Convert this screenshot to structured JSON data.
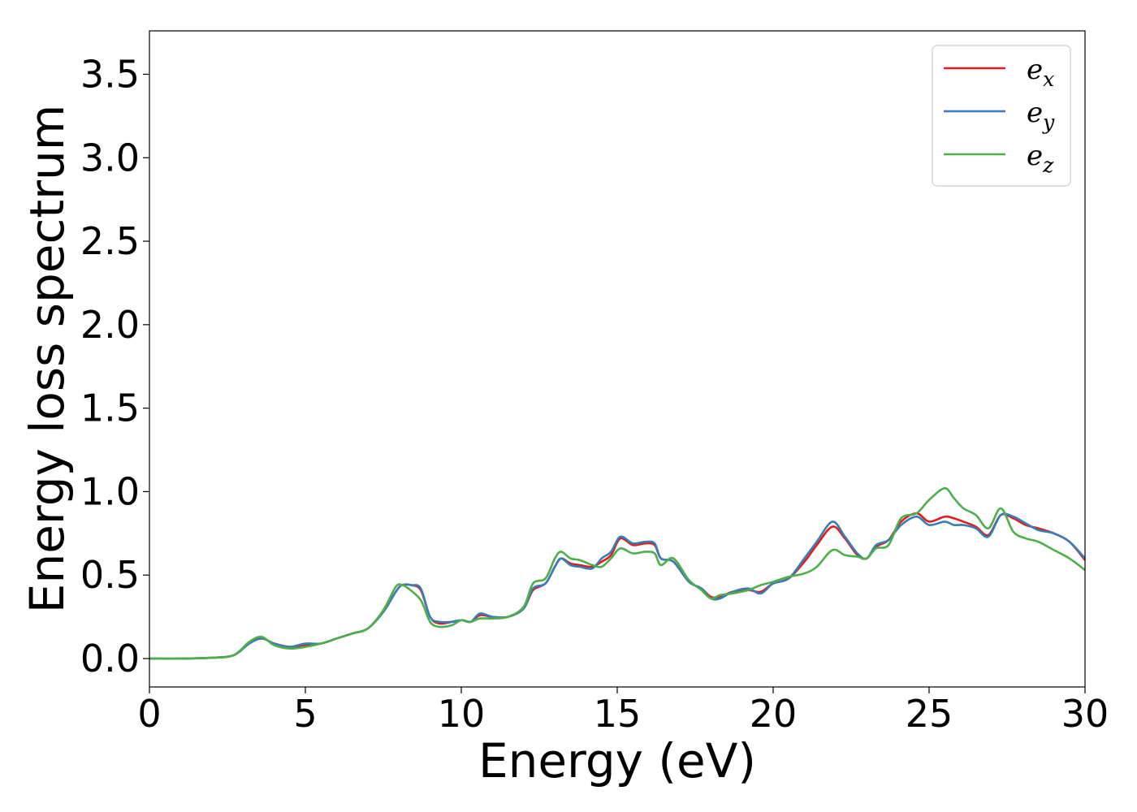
{
  "chart_data": {
    "type": "line",
    "title": "",
    "xlabel": "Energy (eV)",
    "ylabel": "Energy loss spectrum",
    "xlim": [
      0,
      30
    ],
    "ylim": [
      -0.17,
      3.76
    ],
    "xticks": [
      0,
      5,
      10,
      15,
      20,
      25,
      30
    ],
    "xtick_labels": [
      "0",
      "5",
      "10",
      "15",
      "20",
      "25",
      "30"
    ],
    "yticks": [
      0.0,
      0.5,
      1.0,
      1.5,
      2.0,
      2.5,
      3.0,
      3.5
    ],
    "ytick_labels": [
      "0.0",
      "0.5",
      "1.0",
      "1.5",
      "2.0",
      "2.5",
      "3.0",
      "3.5"
    ],
    "grid": false,
    "legend": {
      "position": "top-right"
    },
    "series": [
      {
        "name": "e_x",
        "legend_base": "e",
        "legend_sub": "x",
        "color": "#e41a1c",
        "points": [
          [
            0,
            0
          ],
          [
            1,
            0
          ],
          [
            2,
            0.005
          ],
          [
            2.7,
            0.02
          ],
          [
            3.2,
            0.09
          ],
          [
            3.6,
            0.12
          ],
          [
            4,
            0.09
          ],
          [
            4.5,
            0.07
          ],
          [
            5,
            0.08
          ],
          [
            5.5,
            0.09
          ],
          [
            6,
            0.12
          ],
          [
            6.5,
            0.15
          ],
          [
            7,
            0.18
          ],
          [
            7.5,
            0.28
          ],
          [
            7.9,
            0.4
          ],
          [
            8.1,
            0.44
          ],
          [
            8.4,
            0.44
          ],
          [
            8.7,
            0.41
          ],
          [
            9,
            0.25
          ],
          [
            9.3,
            0.21
          ],
          [
            9.7,
            0.22
          ],
          [
            10,
            0.23
          ],
          [
            10.3,
            0.22
          ],
          [
            10.6,
            0.26
          ],
          [
            11,
            0.25
          ],
          [
            11.5,
            0.25
          ],
          [
            12,
            0.3
          ],
          [
            12.3,
            0.41
          ],
          [
            12.7,
            0.45
          ],
          [
            13,
            0.55
          ],
          [
            13.2,
            0.6
          ],
          [
            13.5,
            0.57
          ],
          [
            13.8,
            0.56
          ],
          [
            14.2,
            0.55
          ],
          [
            14.5,
            0.58
          ],
          [
            14.8,
            0.62
          ],
          [
            15.1,
            0.72
          ],
          [
            15.5,
            0.68
          ],
          [
            15.9,
            0.69
          ],
          [
            16.2,
            0.68
          ],
          [
            16.4,
            0.6
          ],
          [
            16.8,
            0.58
          ],
          [
            17.3,
            0.46
          ],
          [
            17.7,
            0.42
          ],
          [
            18,
            0.37
          ],
          [
            18.3,
            0.37
          ],
          [
            18.7,
            0.4
          ],
          [
            19.2,
            0.41
          ],
          [
            19.6,
            0.4
          ],
          [
            20,
            0.45
          ],
          [
            20.5,
            0.48
          ],
          [
            21,
            0.58
          ],
          [
            21.4,
            0.68
          ],
          [
            21.9,
            0.79
          ],
          [
            22.3,
            0.72
          ],
          [
            22.7,
            0.62
          ],
          [
            23,
            0.6
          ],
          [
            23.3,
            0.67
          ],
          [
            23.7,
            0.71
          ],
          [
            24.1,
            0.82
          ],
          [
            24.6,
            0.87
          ],
          [
            25,
            0.82
          ],
          [
            25.5,
            0.85
          ],
          [
            25.8,
            0.84
          ],
          [
            26.1,
            0.82
          ],
          [
            26.5,
            0.79
          ],
          [
            26.9,
            0.74
          ],
          [
            27.3,
            0.86
          ],
          [
            27.7,
            0.84
          ],
          [
            28.1,
            0.8
          ],
          [
            28.5,
            0.78
          ],
          [
            29,
            0.75
          ],
          [
            29.5,
            0.7
          ],
          [
            30,
            0.59
          ]
        ]
      },
      {
        "name": "e_y",
        "legend_base": "e",
        "legend_sub": "y",
        "color": "#377eb8",
        "points": [
          [
            0,
            0
          ],
          [
            1,
            0
          ],
          [
            2,
            0.005
          ],
          [
            2.7,
            0.02
          ],
          [
            3.2,
            0.09
          ],
          [
            3.6,
            0.12
          ],
          [
            4,
            0.09
          ],
          [
            4.5,
            0.07
          ],
          [
            5,
            0.09
          ],
          [
            5.5,
            0.09
          ],
          [
            6,
            0.12
          ],
          [
            6.5,
            0.15
          ],
          [
            7,
            0.18
          ],
          [
            7.5,
            0.28
          ],
          [
            7.9,
            0.4
          ],
          [
            8.1,
            0.44
          ],
          [
            8.4,
            0.44
          ],
          [
            8.7,
            0.42
          ],
          [
            9,
            0.25
          ],
          [
            9.3,
            0.22
          ],
          [
            9.7,
            0.22
          ],
          [
            10,
            0.23
          ],
          [
            10.3,
            0.22
          ],
          [
            10.6,
            0.27
          ],
          [
            11,
            0.25
          ],
          [
            11.5,
            0.25
          ],
          [
            12,
            0.3
          ],
          [
            12.3,
            0.42
          ],
          [
            12.7,
            0.45
          ],
          [
            13,
            0.55
          ],
          [
            13.2,
            0.6
          ],
          [
            13.5,
            0.56
          ],
          [
            13.8,
            0.55
          ],
          [
            14.2,
            0.54
          ],
          [
            14.5,
            0.6
          ],
          [
            14.8,
            0.64
          ],
          [
            15.1,
            0.73
          ],
          [
            15.5,
            0.69
          ],
          [
            15.9,
            0.7
          ],
          [
            16.2,
            0.69
          ],
          [
            16.4,
            0.6
          ],
          [
            16.8,
            0.58
          ],
          [
            17.3,
            0.46
          ],
          [
            17.7,
            0.42
          ],
          [
            18,
            0.36
          ],
          [
            18.3,
            0.36
          ],
          [
            18.7,
            0.4
          ],
          [
            19.2,
            0.42
          ],
          [
            19.6,
            0.39
          ],
          [
            20,
            0.45
          ],
          [
            20.5,
            0.48
          ],
          [
            21,
            0.6
          ],
          [
            21.4,
            0.7
          ],
          [
            21.9,
            0.82
          ],
          [
            22.3,
            0.73
          ],
          [
            22.7,
            0.63
          ],
          [
            23,
            0.6
          ],
          [
            23.3,
            0.68
          ],
          [
            23.7,
            0.71
          ],
          [
            24.1,
            0.8
          ],
          [
            24.6,
            0.85
          ],
          [
            25,
            0.8
          ],
          [
            25.5,
            0.82
          ],
          [
            25.8,
            0.8
          ],
          [
            26.1,
            0.8
          ],
          [
            26.5,
            0.78
          ],
          [
            26.9,
            0.73
          ],
          [
            27.3,
            0.86
          ],
          [
            27.7,
            0.85
          ],
          [
            28.1,
            0.81
          ],
          [
            28.5,
            0.77
          ],
          [
            29,
            0.75
          ],
          [
            29.5,
            0.7
          ],
          [
            30,
            0.6
          ]
        ]
      },
      {
        "name": "e_z",
        "legend_base": "e",
        "legend_sub": "z",
        "color": "#4daf4a",
        "points": [
          [
            0,
            0
          ],
          [
            1,
            0
          ],
          [
            2,
            0.005
          ],
          [
            2.7,
            0.02
          ],
          [
            3.2,
            0.1
          ],
          [
            3.6,
            0.13
          ],
          [
            4,
            0.08
          ],
          [
            4.5,
            0.06
          ],
          [
            5,
            0.07
          ],
          [
            5.5,
            0.09
          ],
          [
            6,
            0.12
          ],
          [
            6.5,
            0.15
          ],
          [
            7,
            0.18
          ],
          [
            7.5,
            0.29
          ],
          [
            7.9,
            0.43
          ],
          [
            8.1,
            0.44
          ],
          [
            8.3,
            0.42
          ],
          [
            8.7,
            0.35
          ],
          [
            9,
            0.22
          ],
          [
            9.3,
            0.19
          ],
          [
            9.7,
            0.2
          ],
          [
            10,
            0.23
          ],
          [
            10.3,
            0.22
          ],
          [
            10.6,
            0.24
          ],
          [
            11,
            0.24
          ],
          [
            11.5,
            0.25
          ],
          [
            12,
            0.31
          ],
          [
            12.3,
            0.45
          ],
          [
            12.7,
            0.48
          ],
          [
            13,
            0.6
          ],
          [
            13.2,
            0.64
          ],
          [
            13.5,
            0.6
          ],
          [
            13.8,
            0.59
          ],
          [
            14.2,
            0.56
          ],
          [
            14.5,
            0.55
          ],
          [
            14.8,
            0.6
          ],
          [
            15.1,
            0.66
          ],
          [
            15.5,
            0.63
          ],
          [
            15.9,
            0.64
          ],
          [
            16.2,
            0.63
          ],
          [
            16.4,
            0.56
          ],
          [
            16.8,
            0.6
          ],
          [
            17.3,
            0.47
          ],
          [
            17.7,
            0.41
          ],
          [
            18,
            0.36
          ],
          [
            18.3,
            0.38
          ],
          [
            18.7,
            0.39
          ],
          [
            19.2,
            0.41
          ],
          [
            19.6,
            0.44
          ],
          [
            20,
            0.46
          ],
          [
            20.5,
            0.49
          ],
          [
            21,
            0.51
          ],
          [
            21.4,
            0.55
          ],
          [
            21.9,
            0.65
          ],
          [
            22.3,
            0.62
          ],
          [
            22.7,
            0.61
          ],
          [
            23,
            0.6
          ],
          [
            23.3,
            0.66
          ],
          [
            23.7,
            0.68
          ],
          [
            24.1,
            0.84
          ],
          [
            24.6,
            0.87
          ],
          [
            25,
            0.95
          ],
          [
            25.5,
            1.02
          ],
          [
            25.8,
            0.96
          ],
          [
            26.1,
            0.9
          ],
          [
            26.5,
            0.86
          ],
          [
            26.9,
            0.78
          ],
          [
            27.3,
            0.9
          ],
          [
            27.7,
            0.76
          ],
          [
            28.1,
            0.72
          ],
          [
            28.5,
            0.7
          ],
          [
            29,
            0.65
          ],
          [
            29.5,
            0.6
          ],
          [
            30,
            0.53
          ]
        ]
      }
    ]
  }
}
